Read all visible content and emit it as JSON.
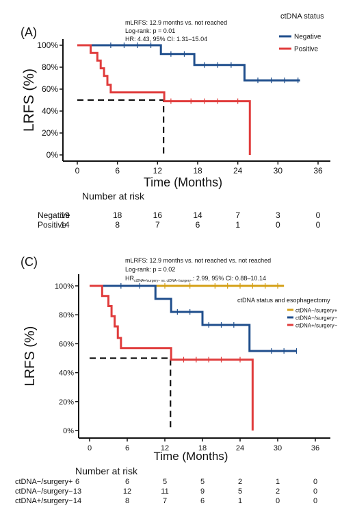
{
  "chart_data": [
    {
      "type": "line",
      "panel_label": "(A)",
      "annotations": [
        "mLRFS: 12.9 months vs. not reached",
        "Log-rank: p = 0.01",
        "HR: 4.43, 95% CI: 1.31–15.04"
      ],
      "legend_title": "ctDNA status",
      "xlabel": "Time (Months)",
      "ylabel": "LRFS (%)",
      "x_ticks": [
        "0",
        "6",
        "12",
        "18",
        "24",
        "30",
        "36"
      ],
      "y_ticks": [
        "0%",
        "20%",
        "40%",
        "60%",
        "80%",
        "100%"
      ],
      "xlim": [
        0,
        36
      ],
      "ylim": [
        0,
        100
      ],
      "series": [
        {
          "name": "Negative",
          "color": "#1f4e8c",
          "x": [
            0,
            12.5,
            17.5,
            25,
            33.3
          ],
          "y": [
            100,
            92,
            82,
            68,
            68
          ],
          "censor_x": [
            5,
            7,
            9,
            11,
            14,
            16,
            19,
            21,
            23,
            27,
            29,
            31,
            33
          ]
        },
        {
          "name": "Positive",
          "color": "#e03c3c",
          "x": [
            0,
            2,
            3,
            3.5,
            4,
            4.5,
            5,
            13,
            25.8,
            25.8
          ],
          "y": [
            100,
            93,
            86,
            79,
            72,
            64,
            57,
            49,
            49,
            0
          ],
          "censor_x": [
            14,
            17,
            19,
            21,
            24
          ]
        }
      ],
      "median_line": {
        "x": 12.9,
        "y": 50
      },
      "risk_table": {
        "title": "Number at risk",
        "rows": [
          {
            "label": "Negative",
            "counts": [
              "19",
              "18",
              "16",
              "14",
              "7",
              "3",
              "0"
            ]
          },
          {
            "label": "Positive",
            "counts": [
              "14",
              "8",
              "7",
              "6",
              "1",
              "0",
              "0"
            ]
          }
        ]
      }
    },
    {
      "type": "line",
      "panel_label": "(C)",
      "annotations": [
        "mLRFS: 12.9 months vs. not reached vs. not reached",
        "Log-rank: p = 0.02"
      ],
      "hr_prefix": "HR",
      "hr_subscript": "ctDNA+/surgery− vs. ctDNA−/surgery−",
      "hr_suffix": ": 2.99, 95% CI: 0.88–10.14",
      "legend_title": "ctDNA status and esophagectomy",
      "xlabel": "Time (Months)",
      "ylabel": "LRFS (%)",
      "x_ticks": [
        "0",
        "6",
        "12",
        "18",
        "24",
        "30",
        "36"
      ],
      "y_ticks": [
        "0%",
        "20%",
        "40%",
        "60%",
        "80%",
        "100%"
      ],
      "xlim": [
        0,
        36
      ],
      "ylim": [
        0,
        100
      ],
      "series": [
        {
          "name": "ctDNA−/surgery+",
          "color": "#d4a017",
          "x": [
            0,
            31
          ],
          "y": [
            100,
            100
          ],
          "censor_x": [
            12,
            16,
            20,
            22,
            24,
            26,
            28,
            30
          ]
        },
        {
          "name": "ctDNA−/surgery−",
          "color": "#1f4e8c",
          "x": [
            0,
            10.5,
            13,
            18,
            25.5,
            33
          ],
          "y": [
            100,
            91,
            82,
            73,
            55,
            55
          ],
          "censor_x": [
            5,
            8,
            14,
            16,
            19,
            21,
            23,
            29,
            31,
            33
          ]
        },
        {
          "name": "ctDNA+/surgery−",
          "color": "#e03c3c",
          "x": [
            0,
            2,
            3,
            3.5,
            4,
            4.5,
            5,
            13,
            26,
            26
          ],
          "y": [
            100,
            93,
            86,
            79,
            72,
            64,
            57,
            49,
            49,
            0
          ],
          "censor_x": [
            15,
            17,
            19,
            21,
            24
          ]
        }
      ],
      "median_line": {
        "x": 12.9,
        "y": 50
      },
      "risk_table": {
        "title": "Number at risk",
        "rows": [
          {
            "label": "ctDNA−/surgery+",
            "counts": [
              "6",
              "6",
              "5",
              "5",
              "2",
              "1",
              "0"
            ]
          },
          {
            "label": "ctDNA−/surgery−",
            "counts": [
              "13",
              "12",
              "11",
              "9",
              "5",
              "2",
              "0"
            ]
          },
          {
            "label": "ctDNA+/surgery−",
            "counts": [
              "14",
              "8",
              "7",
              "6",
              "1",
              "0",
              "0"
            ]
          }
        ]
      }
    }
  ]
}
